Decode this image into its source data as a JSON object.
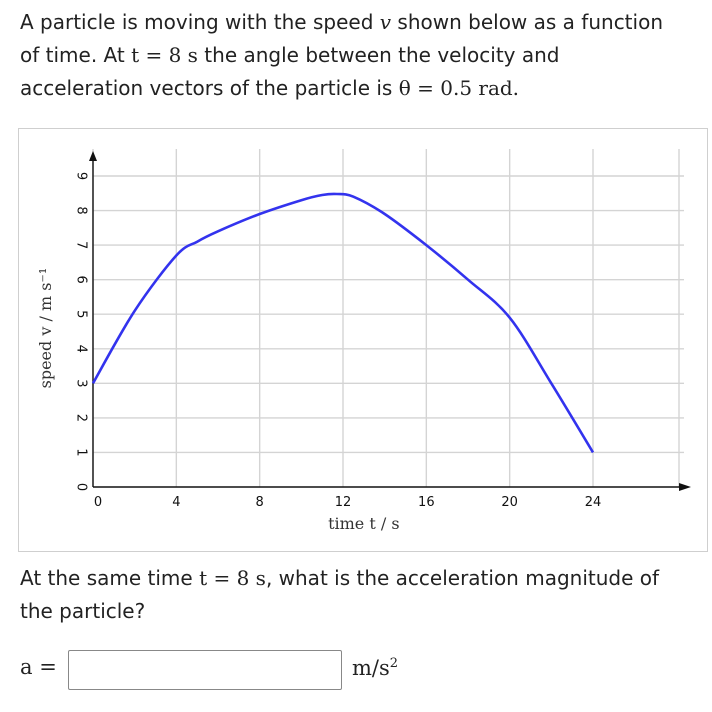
{
  "question": {
    "intro_line1": "A particle is moving with the speed ",
    "intro_var_v": "v",
    "intro_line1_end": " shown below as a function",
    "intro_line2_a": "of time. At ",
    "intro_t_eq": "t = 8 s",
    "intro_line2_b": " the angle between the velocity and",
    "intro_line3_a": "acceleration vectors of the particle is ",
    "intro_theta_eq": "θ = 0.5 rad.",
    "followup_a": "At the same time ",
    "followup_t_eq": "t = 8 s",
    "followup_b": ", what is the acceleration magnitude of",
    "followup_line2": "the particle?"
  },
  "answer": {
    "label": "a =",
    "value": "",
    "placeholder": "",
    "unit_base": "m/s",
    "unit_exp": "2"
  },
  "chart_data": {
    "type": "line",
    "xlabel": "time t / s",
    "ylabel": "speed v / m s⁻¹",
    "xlim": [
      0,
      24
    ],
    "ylim": [
      0,
      9
    ],
    "x_ticks": [
      "0",
      "4",
      "8",
      "12",
      "16",
      "20",
      "24"
    ],
    "y_ticks": [
      "0",
      "1",
      "2",
      "3",
      "4",
      "5",
      "6",
      "7",
      "8",
      "9"
    ],
    "grid": true,
    "series": [
      {
        "color": "#3333ee",
        "x": [
          0,
          2,
          4,
          5,
          6,
          8,
          10,
          11,
          11.7,
          12.5,
          14,
          16,
          18,
          20,
          22,
          24
        ],
        "y": [
          3.0,
          5.1,
          6.7,
          7.1,
          7.4,
          7.9,
          8.3,
          8.45,
          8.48,
          8.4,
          7.9,
          7.0,
          6.0,
          4.9,
          3.0,
          1.0
        ]
      }
    ]
  }
}
